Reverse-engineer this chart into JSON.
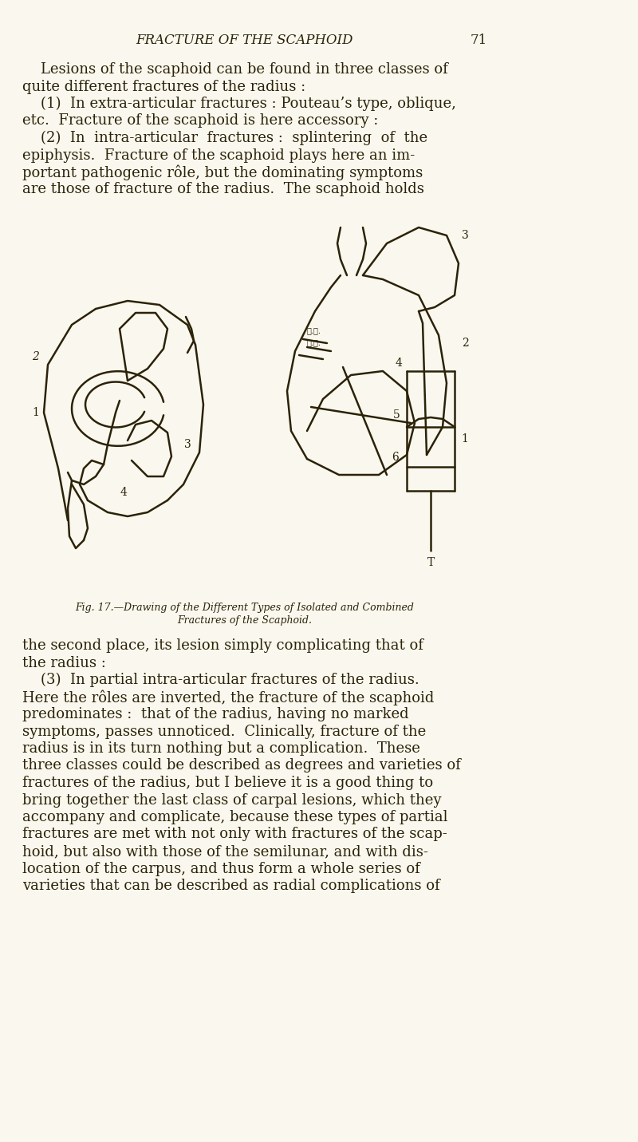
{
  "background_color": "#FAF8EE",
  "page_width": 8.0,
  "page_height": 14.31,
  "dpi": 100,
  "header_title": "FRACTURE OF THE SCAPHOID",
  "header_page": "71",
  "text_color": "#2B2208",
  "line_color": "#2B2208",
  "caption_line1": "Fig. 17.—Drawing of the Different Types of Isolated and Combined",
  "caption_line2": "Fractures of the Scaphoid.",
  "body_lines_top": [
    "    Lesions of the scaphoid can be found in three classes of",
    "quite different fractures of the radius :",
    "    (1)  In extra-articular fractures : Pouteau’s type, oblique,",
    "etc.  Fracture of the scaphoid is here accessory :",
    "    (2)  In  intra-articular  fractures :  splintering  of  the",
    "epiphysis.  Fracture of the scaphoid plays here an im-",
    "portant pathogenic rôle, but the dominating symptoms",
    "are those of fracture of the radius.  The scaphoid holds"
  ],
  "body_lines_bottom": [
    "the second place, its lesion simply complicating that of",
    "the radius :",
    "    (3)  In partial intra-articular fractures of the radius.",
    "Here the rôles are inverted, the fracture of the scaphoid",
    "predominates :  that of the radius, having no marked",
    "symptoms, passes unnoticed.  Clinically, fracture of the",
    "radius is in its turn nothing but a complication.  These",
    "three classes could be described as degrees and varieties of",
    "fractures of the radius, but I believe it is a good thing to",
    "bring together the last class of carpal lesions, which they",
    "accompany and complicate, because these types of partial",
    "fractures are met with not only with fractures of the scap-",
    "hoid, but also with those of the semilunar, and with dis-",
    "location of the carpus, and thus form a whole series of",
    "varieties that can be described as radial complications of"
  ]
}
